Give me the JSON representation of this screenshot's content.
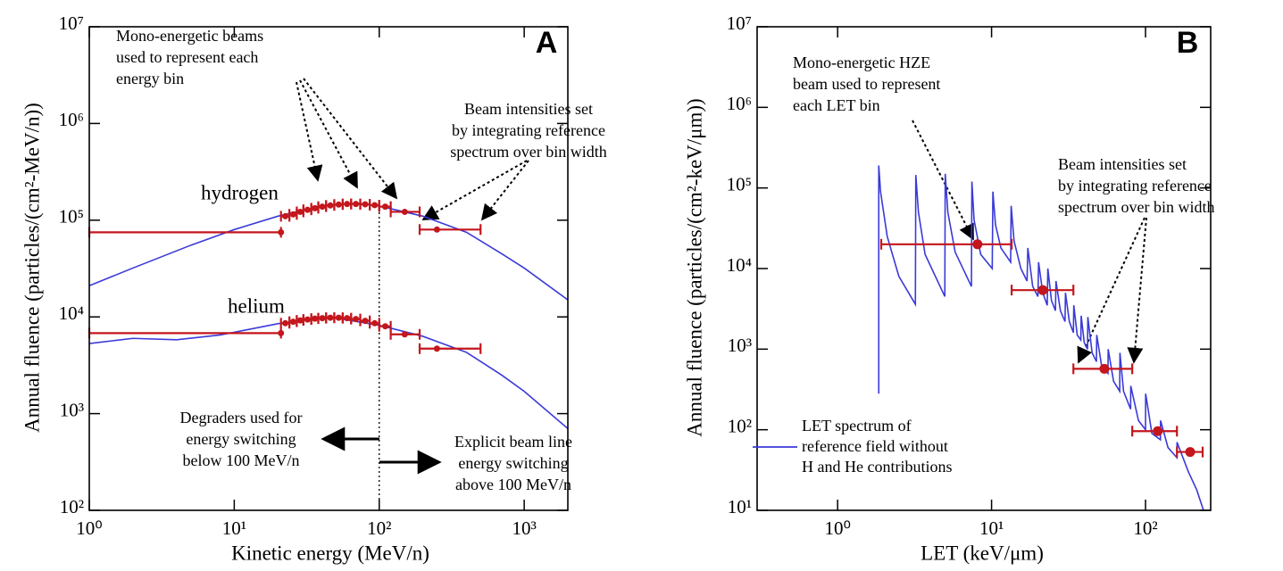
{
  "chart_data": [
    {
      "type": "line",
      "panel_label": "A",
      "xlabel": "Kinetic energy (MeV/n)",
      "ylabel": "Annual fluence (particles/(cm²-MeV/n))",
      "xscale": "log",
      "yscale": "log",
      "xlim": [
        1,
        2000
      ],
      "ylim": [
        100,
        10000000
      ],
      "xticks": [
        {
          "value": 1,
          "label": "10⁰"
        },
        {
          "value": 10,
          "label": "10¹"
        },
        {
          "value": 100,
          "label": "10²"
        },
        {
          "value": 1000,
          "label": "10³"
        }
      ],
      "yticks": [
        {
          "value": 100,
          "label": "10²"
        },
        {
          "value": 1000,
          "label": "10³"
        },
        {
          "value": 10000,
          "label": "10⁴"
        },
        {
          "value": 100000,
          "label": "10⁵"
        },
        {
          "value": 1000000,
          "label": "10⁶"
        },
        {
          "value": 10000000,
          "label": "10⁷"
        }
      ],
      "series": [
        {
          "name": "hydrogen",
          "color": "#3a3ad8",
          "x": [
            1,
            2,
            5,
            10,
            20,
            40,
            70,
            100,
            200,
            400,
            700,
            1000,
            2000
          ],
          "values": [
            21000,
            32000,
            55000,
            80000,
            110000,
            140000,
            150000,
            140000,
            110000,
            75000,
            45000,
            32000,
            15000
          ]
        },
        {
          "name": "helium",
          "color": "#3a3ad8",
          "x": [
            1,
            2,
            4,
            8,
            20,
            45,
            100,
            200,
            400,
            700,
            1000,
            2000
          ],
          "values": [
            5300,
            6000,
            5800,
            6500,
            8500,
            10000,
            8200,
            6300,
            4300,
            2500,
            1700,
            700
          ]
        }
      ],
      "beams": [
        {
          "color": "#c4161c",
          "x": [
            21,
            22.5,
            25.5,
            28.5,
            32,
            36,
            40.5,
            46,
            52.5,
            60,
            69,
            80,
            93,
            110,
            150,
            250
          ],
          "xmin": [
            1,
            21,
            24,
            27,
            30,
            34,
            38,
            43,
            49,
            56,
            64,
            74,
            86,
            100,
            120,
            190
          ],
          "xmax": [
            21,
            24,
            27,
            30,
            34,
            38,
            43,
            49,
            56,
            64,
            74,
            86,
            100,
            120,
            190,
            500
          ],
          "values": [
            75000,
            110000,
            115000,
            122000,
            128000,
            133000,
            138000,
            142000,
            145000,
            147000,
            147000,
            146000,
            143000,
            138000,
            122000,
            80000
          ]
        },
        {
          "color": "#c4161c",
          "x": [
            21,
            22.5,
            25.5,
            28.5,
            32,
            36,
            40.5,
            46,
            52.5,
            60,
            69,
            80,
            93,
            110,
            150,
            250
          ],
          "xmin": [
            1,
            21,
            24,
            27,
            30,
            34,
            38,
            43,
            49,
            56,
            64,
            74,
            86,
            100,
            120,
            190
          ],
          "xmax": [
            21,
            24,
            27,
            30,
            34,
            38,
            43,
            49,
            56,
            64,
            74,
            86,
            100,
            120,
            190,
            500
          ],
          "values": [
            6800,
            8600,
            8900,
            9200,
            9400,
            9600,
            9700,
            9800,
            9800,
            9700,
            9500,
            9100,
            8600,
            8000,
            6600,
            4700
          ]
        }
      ],
      "reference_line_x": 100,
      "annotations": [
        {
          "lines": [
            "Mono-energetic beams",
            "used to represent each",
            "energy bin"
          ]
        },
        {
          "lines": [
            "Beam intensities set",
            "by integrating reference",
            "spectrum over bin width"
          ]
        },
        {
          "lines": [
            "Degraders used for",
            "energy switching",
            "below 100 MeV/n"
          ]
        },
        {
          "lines": [
            "Explicit beam line",
            "energy switching",
            "above 100 MeV/n"
          ]
        }
      ]
    },
    {
      "type": "line",
      "panel_label": "B",
      "xlabel": "LET (keV/μm)",
      "ylabel": "Annual fluence (particles/(cm²-keV/μm))",
      "xscale": "log",
      "yscale": "log",
      "xlim": [
        0.3,
        265
      ],
      "ylim": [
        10,
        10000000
      ],
      "xticks": [
        {
          "value": 1,
          "label": "10⁰"
        },
        {
          "value": 10,
          "label": "10¹"
        },
        {
          "value": 100,
          "label": "10²"
        }
      ],
      "yticks": [
        {
          "value": 10,
          "label": "10¹"
        },
        {
          "value": 100,
          "label": "10²"
        },
        {
          "value": 1000,
          "label": "10³"
        },
        {
          "value": 10000,
          "label": "10⁴"
        },
        {
          "value": 100000,
          "label": "10⁵"
        },
        {
          "value": 1000000,
          "label": "10⁶"
        },
        {
          "value": 10000000,
          "label": "10⁷"
        }
      ],
      "series": [
        {
          "name": "LET spectrum of reference field without H and He contributions",
          "color": "#3a3ad8",
          "x": [
            1.85,
            1.85,
            1.9,
            2.1,
            2.5,
            3.2,
            3.22,
            3.35,
            3.7,
            4.97,
            5.0,
            5.2,
            5.8,
            7.4,
            7.45,
            7.7,
            8.5,
            10.1,
            10.2,
            10.6,
            11.5,
            13.3,
            13.4,
            14,
            15.5,
            17,
            17.2,
            18.5,
            20,
            20.2,
            21.5,
            23,
            23.2,
            24.5,
            26,
            26.2,
            28,
            30,
            30.2,
            32,
            34,
            34.2,
            36,
            38,
            38.2,
            40,
            42,
            42.2,
            45,
            48,
            48.2,
            52,
            57,
            57.2,
            62,
            68,
            68.2,
            72,
            80,
            80.2,
            90,
            100,
            100.2,
            110,
            125,
            125.2,
            140,
            160,
            160.2,
            190,
            215,
            238
          ],
          "values": [
            280,
            190000,
            90000,
            25000,
            8000,
            3600,
            145000,
            50000,
            15000,
            4500,
            150000,
            50000,
            16000,
            6000,
            120000,
            40000,
            15000,
            10000,
            90000,
            35000,
            18000,
            12000,
            60000,
            22000,
            10000,
            7000,
            18000,
            6000,
            4500,
            12000,
            5000,
            3500,
            10000,
            4000,
            3000,
            7000,
            3000,
            2200,
            5000,
            2200,
            1600,
            3500,
            1500,
            1300,
            2600,
            1200,
            1000,
            2500,
            900,
            700,
            1500,
            600,
            500,
            1000,
            400,
            300,
            900,
            300,
            180,
            350,
            130,
            100,
            280,
            90,
            75,
            130,
            60,
            45,
            70,
            30,
            18,
            10
          ]
        }
      ],
      "beams": [
        {
          "color": "#c4161c",
          "x": [
            8.1,
            21.5,
            54,
            120,
            195
          ],
          "xmin": [
            1.92,
            13.5,
            34,
            82,
            160
          ],
          "xmax": [
            13.5,
            34,
            82,
            160,
            235
          ],
          "values": [
            20000,
            5400,
            570,
            96,
            53
          ]
        }
      ],
      "annotations": [
        {
          "lines": [
            "Mono-energetic HZE",
            "beam used to represent",
            "each LET bin"
          ]
        },
        {
          "lines": [
            "Beam intensities set",
            "by integrating reference",
            "spectrum over bin width"
          ]
        }
      ]
    }
  ]
}
